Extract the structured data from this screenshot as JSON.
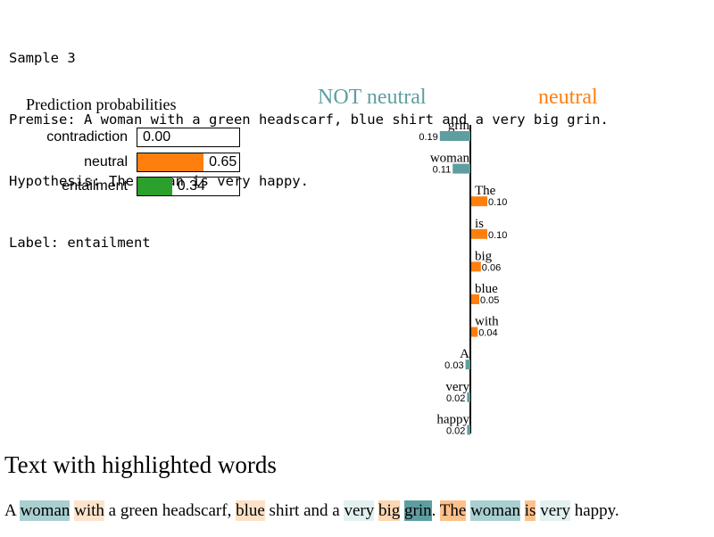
{
  "header": {
    "sample": "Sample 3",
    "premise": "Premise: A woman with a green headscarf, blue shirt and a very big grin.",
    "hypothesis": "Hypothesis: The woman is very happy.",
    "label": "Label: entailment"
  },
  "prediction_probabilities": {
    "title": "Prediction probabilities",
    "rows": [
      {
        "label": "contradiction",
        "value": 0.0,
        "value_text": "0.00",
        "color": "#1f77b4"
      },
      {
        "label": "neutral",
        "value": 0.65,
        "value_text": "0.65",
        "color": "#ff7f0e"
      },
      {
        "label": "entailment",
        "value": 0.34,
        "value_text": "0.34",
        "color": "#2ca02c"
      }
    ]
  },
  "class_headers": {
    "not_class": {
      "text": "NOT neutral",
      "color": "#5f9ea0"
    },
    "class": {
      "text": "neutral",
      "color": "#ff7f0e"
    }
  },
  "chart_data": {
    "type": "bar",
    "orientation": "horizontal",
    "categories": [
      "grin",
      "woman",
      "The",
      "is",
      "big",
      "blue",
      "with",
      "A",
      "very",
      "happy"
    ],
    "values": [
      -0.19,
      -0.11,
      0.1,
      0.1,
      0.06,
      0.05,
      0.04,
      -0.03,
      -0.02,
      -0.02
    ],
    "value_labels": [
      "0.19",
      "0.11",
      "0.10",
      "0.10",
      "0.06",
      "0.05",
      "0.04",
      "0.03",
      "0.02",
      "0.02"
    ],
    "colors": {
      "negative": "#5f9ea0",
      "positive": "#ff7f0e"
    }
  },
  "highlight": {
    "title": "Text with highlighted words",
    "tokens": [
      {
        "text": "A",
        "bg": null
      },
      {
        "text": " ",
        "bg": null
      },
      {
        "text": "woman",
        "bg": "#a9cfd0"
      },
      {
        "text": " ",
        "bg": null
      },
      {
        "text": "with",
        "bg": "#fde3cc"
      },
      {
        "text": " a green headscarf, ",
        "bg": null
      },
      {
        "text": "blue",
        "bg": "#fde1c7"
      },
      {
        "text": " shirt and a ",
        "bg": null
      },
      {
        "text": "very",
        "bg": "#e3f0f0"
      },
      {
        "text": " ",
        "bg": null
      },
      {
        "text": "big",
        "bg": "#fdd6b3"
      },
      {
        "text": " ",
        "bg": null
      },
      {
        "text": "grin",
        "bg": "#5f9ea0"
      },
      {
        "text": ". ",
        "bg": null
      },
      {
        "text": "The",
        "bg": "#fdc08a"
      },
      {
        "text": " ",
        "bg": null
      },
      {
        "text": "woman",
        "bg": "#a9cfd0"
      },
      {
        "text": " ",
        "bg": null
      },
      {
        "text": "is",
        "bg": "#fdc08a"
      },
      {
        "text": " ",
        "bg": null
      },
      {
        "text": "very",
        "bg": "#e3f0f0"
      },
      {
        "text": " happy.",
        "bg": null
      }
    ]
  }
}
